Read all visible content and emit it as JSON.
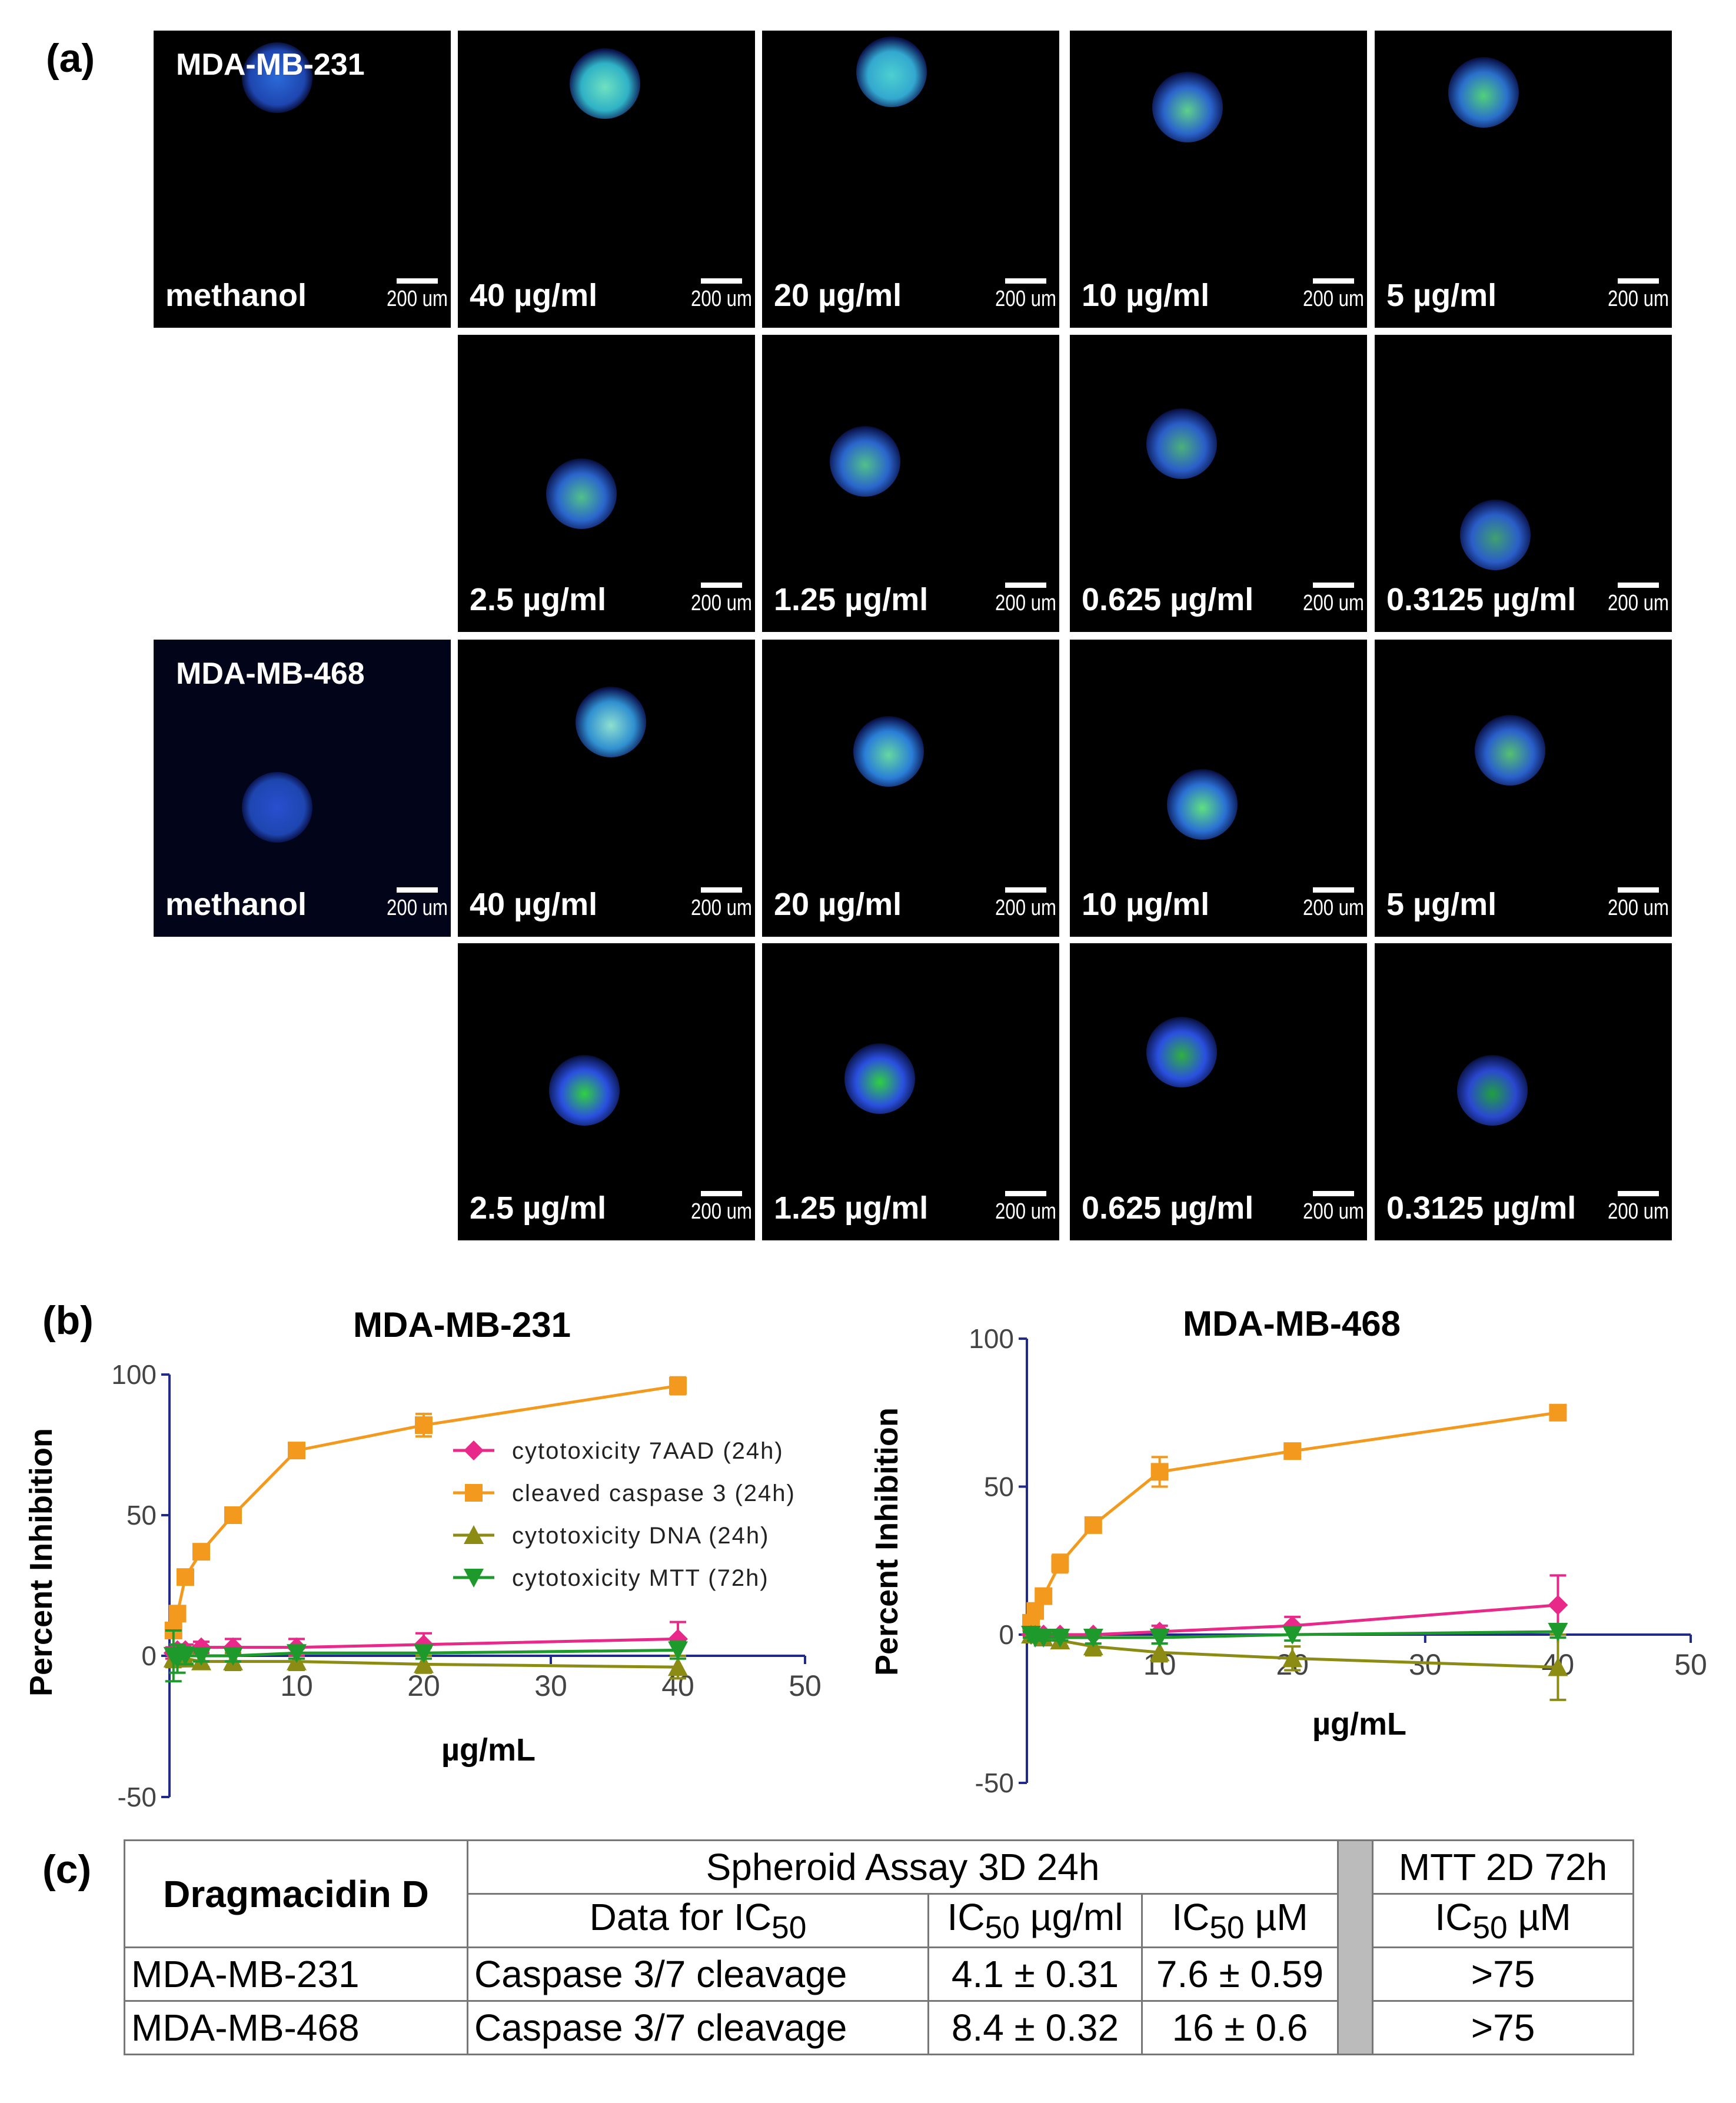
{
  "panel_labels": {
    "a": "(a)",
    "b": "(b)",
    "c": "(c)"
  },
  "scale_bar_label": "200 um",
  "image_grid": [
    {
      "cell_line": "MDA-MB-231",
      "rows": [
        [
          "methanol",
          "40 µg/ml",
          "20 µg/ml",
          "10 µg/ml",
          "5 µg/ml"
        ],
        [
          null,
          "2.5 µg/ml",
          "1.25 µg/ml",
          "0.625 µg/ml",
          "0.3125 µg/ml"
        ]
      ]
    },
    {
      "cell_line": "MDA-MB-468",
      "rows": [
        [
          "methanol",
          "40 µg/ml",
          "20 µg/ml",
          "10 µg/ml",
          "5 µg/ml"
        ],
        [
          null,
          "2.5 µg/ml",
          "1.25 µg/ml",
          "0.625 µg/ml",
          "0.3125 µg/ml"
        ]
      ]
    }
  ],
  "chart_data": [
    {
      "type": "line",
      "title": "MDA-MB-231",
      "xlabel": "µg/mL",
      "ylabel": "Percent Inhibition",
      "xlim": [
        0,
        50
      ],
      "ylim": [
        -50,
        100
      ],
      "xticks": [
        10,
        20,
        30,
        40,
        50
      ],
      "yticks": [
        -50,
        0,
        50,
        100
      ],
      "legend": "center",
      "series": [
        {
          "name": "cytotoxicity 7AAD (24h)",
          "color": "#e8298a",
          "marker": "diamond",
          "x": [
            0.3125,
            0.625,
            1.25,
            2.5,
            5,
            10,
            20,
            40
          ],
          "y": [
            1,
            2,
            2,
            3,
            3,
            3,
            4,
            6
          ],
          "err": [
            2,
            2,
            2,
            2,
            3,
            3,
            4,
            6
          ]
        },
        {
          "name": "cleaved caspase 3 (24h)",
          "color": "#f39a1e",
          "marker": "square",
          "x": [
            0.3125,
            0.625,
            1.25,
            2.5,
            5,
            10,
            20,
            40
          ],
          "y": [
            9,
            15,
            28,
            37,
            50,
            73,
            82,
            96
          ],
          "err": [
            2,
            2,
            2,
            2,
            2,
            2,
            4,
            3
          ]
        },
        {
          "name": "cytotoxicity DNA (24h)",
          "color": "#8c8c14",
          "marker": "triangle-up",
          "x": [
            0.3125,
            0.625,
            1.25,
            2.5,
            5,
            10,
            20,
            40
          ],
          "y": [
            -1,
            -1,
            -1,
            -2,
            -2,
            -2,
            -3,
            -4
          ],
          "err": [
            3,
            2,
            2,
            2,
            3,
            3,
            3,
            4
          ]
        },
        {
          "name": "cytotoxicity MTT (72h)",
          "color": "#1e9a2c",
          "marker": "triangle-down",
          "x": [
            0.3125,
            0.625,
            1.25,
            2.5,
            5,
            10,
            20,
            40
          ],
          "y": [
            0,
            -1,
            0,
            0,
            0,
            1,
            1,
            2
          ],
          "err": [
            9,
            5,
            3,
            2,
            2,
            2,
            2,
            3
          ]
        }
      ]
    },
    {
      "type": "line",
      "title": "MDA-MB-468",
      "xlabel": "µg/mL",
      "ylabel": "Percent Inhibition",
      "xlim": [
        0,
        50
      ],
      "ylim": [
        -50,
        100
      ],
      "xticks": [
        10,
        20,
        30,
        40,
        50
      ],
      "yticks": [
        -50,
        0,
        50,
        100
      ],
      "series": [
        {
          "name": "cytotoxicity 7AAD (24h)",
          "color": "#e8298a",
          "marker": "diamond",
          "x": [
            0.3125,
            0.625,
            1.25,
            2.5,
            5,
            10,
            20,
            40
          ],
          "y": [
            0,
            0,
            0,
            0,
            0,
            1,
            3,
            10
          ],
          "err": [
            1,
            1,
            1,
            1,
            1,
            2,
            3,
            10
          ]
        },
        {
          "name": "cleaved caspase 3 (24h)",
          "color": "#f39a1e",
          "marker": "square",
          "x": [
            0.3125,
            0.625,
            1.25,
            2.5,
            5,
            10,
            20,
            40
          ],
          "y": [
            4,
            8,
            13,
            24,
            37,
            55,
            62,
            75
          ],
          "err": [
            2,
            2,
            2,
            3,
            2,
            5,
            2,
            2
          ]
        },
        {
          "name": "cytotoxicity DNA (24h)",
          "color": "#8c8c14",
          "marker": "triangle-up",
          "x": [
            0.3125,
            0.625,
            1.25,
            2.5,
            5,
            10,
            20,
            40
          ],
          "y": [
            0,
            0,
            -1,
            -2,
            -4,
            -6,
            -8,
            -11
          ],
          "err": [
            1,
            1,
            1,
            2,
            3,
            3,
            4,
            11
          ]
        },
        {
          "name": "cytotoxicity MTT (72h)",
          "color": "#1e9a2c",
          "marker": "triangle-down",
          "x": [
            0.3125,
            0.625,
            1.25,
            2.5,
            5,
            10,
            20,
            40
          ],
          "y": [
            0,
            -1,
            -1,
            -1,
            -1,
            -1,
            0,
            1
          ],
          "err": [
            1,
            1,
            1,
            1,
            2,
            2,
            2,
            2
          ]
        }
      ]
    }
  ],
  "table": {
    "compound": "Dragmacidin D",
    "group_3d": "Spheroid Assay 3D 24h",
    "group_2d": "MTT 2D 72h",
    "col_data": "Data for IC",
    "col_ugml": "IC",
    "col_um": "IC",
    "col_2d": "IC",
    "sub50": "50",
    "unit_ugml": " µg/ml",
    "unit_um": " µM",
    "rows": [
      {
        "line": "MDA-MB-231",
        "data": "Caspase 3/7 cleavage",
        "ugml": "4.1 ± 0.31",
        "um": "7.6 ± 0.59",
        "mtt": ">75"
      },
      {
        "line": "MDA-MB-468",
        "data": "Caspase 3/7 cleavage",
        "ugml": "8.4 ± 0.32",
        "um": "16 ± 0.6",
        "mtt": ">75"
      }
    ]
  }
}
